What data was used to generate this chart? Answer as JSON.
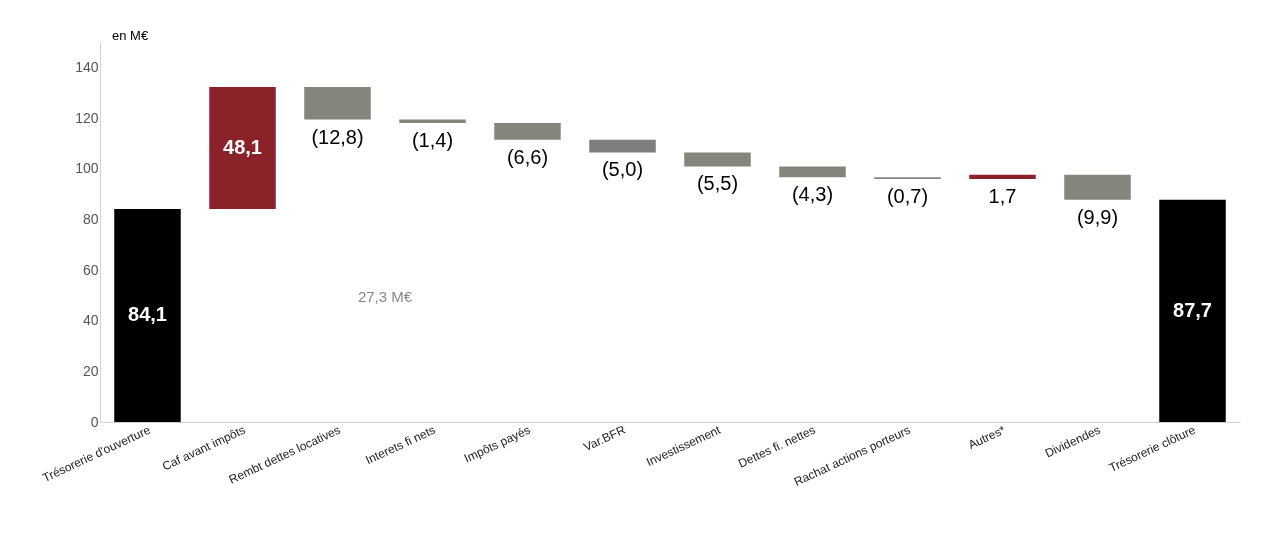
{
  "chart_data": {
    "type": "bar",
    "categories": [
      "Trésorerie d'ouverture",
      "Caf avant impôts",
      "Rembt dettes locatives",
      "Interets fi nets",
      "Impôts payés",
      "Var.BFR",
      "Investissement",
      "Dettes fi. nettes",
      "Rachat actions porteurs",
      "Autres*",
      "Dividendes",
      "Trésorerie clôture"
    ],
    "values": [
      84.1,
      48.1,
      -12.8,
      -1.4,
      -6.6,
      -5.0,
      -5.5,
      -4.3,
      -0.7,
      1.7,
      -9.9,
      87.7
    ],
    "base": [
      0,
      84.1,
      132.2,
      119.4,
      118.0,
      111.4,
      106.4,
      100.9,
      96.6,
      95.9,
      97.6,
      0
    ],
    "colors": [
      "#000000",
      "#8b2129",
      "#85857b",
      "#85857b",
      "#85857b",
      "#7f7f7f",
      "#85857b",
      "#85857b",
      "#85857b",
      "#8b2129",
      "#85857b",
      "#000000"
    ],
    "value_labels": [
      "84,1",
      "48,1",
      "(12,8)",
      "(1,4)",
      "(6,6)",
      "(5,0)",
      "(5,5)",
      "(4,3)",
      "(0,7)",
      "1,7",
      "(9,9)",
      "87,7"
    ],
    "ylim": [
      0,
      150
    ],
    "yticks": [
      0,
      20,
      40,
      60,
      80,
      100,
      120,
      140
    ],
    "grid": false,
    "annotations": [
      "en M€",
      "27,3 M€"
    ]
  }
}
